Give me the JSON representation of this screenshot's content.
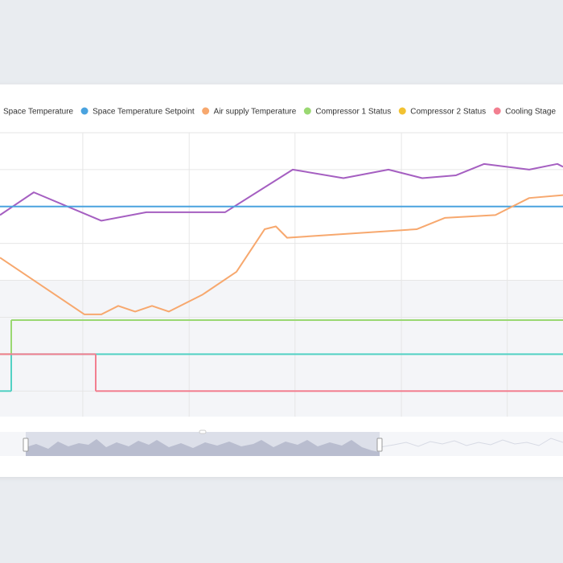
{
  "chart_data": {
    "type": "line",
    "xlim": [
      0,
      100
    ],
    "ylim": [
      0,
      100
    ],
    "xticks": [
      14.7,
      33.6,
      52.4,
      71.3,
      90.1
    ],
    "yticks": [
      9,
      22,
      35,
      48,
      61,
      74,
      87,
      100
    ],
    "grid": true,
    "series": [
      {
        "name": "Space Temperature",
        "color": "#a55fc1",
        "x": [
          0,
          6,
          18,
          26,
          40,
          52,
          61,
          69,
          75,
          81,
          86,
          94,
          99,
          100
        ],
        "values": [
          71,
          79,
          69,
          72,
          72,
          87,
          84,
          87,
          84,
          85,
          89,
          87,
          89,
          88
        ]
      },
      {
        "name": "Space Temperature Setpoint",
        "color": "#4aa3df",
        "x": [
          0,
          100
        ],
        "values": [
          74,
          74
        ]
      },
      {
        "name": "Air supply Temperature",
        "color": "#f7a86e",
        "x": [
          0,
          15,
          18,
          21,
          24,
          27,
          30,
          36,
          42,
          47,
          49,
          51,
          74,
          79,
          88,
          94,
          100
        ],
        "values": [
          56,
          36,
          36,
          39,
          37,
          39,
          37,
          43,
          51,
          66,
          67,
          63,
          66,
          70,
          71,
          77,
          78
        ]
      },
      {
        "name": "Compressor 1 Status",
        "color": "#9ad872",
        "step": true,
        "x": [
          0,
          2,
          100
        ],
        "values": [
          22,
          34,
          34
        ]
      },
      {
        "name": "Compressor 2 Status",
        "color": "#f2c232",
        "line_color": "#52d1c4",
        "step": true,
        "x": [
          0,
          2,
          100
        ],
        "values": [
          9,
          22,
          22
        ]
      },
      {
        "name": "Cooling Stage",
        "color": "#f27f90",
        "step": true,
        "x": [
          0,
          17,
          100
        ],
        "values": [
          22,
          9,
          9
        ]
      }
    ]
  }
}
